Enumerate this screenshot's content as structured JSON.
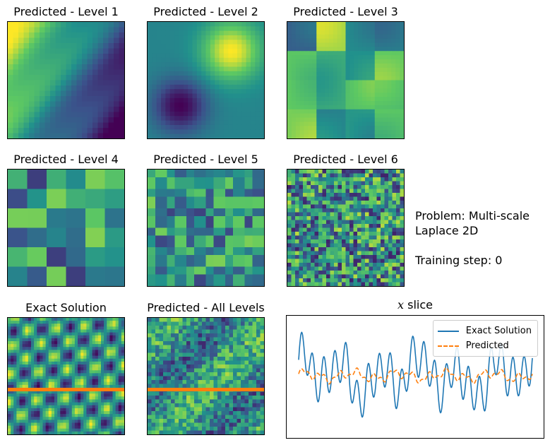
{
  "panels": [
    {
      "title": "Predicted - Level 1",
      "pattern": "gradient"
    },
    {
      "title": "Predicted - Level 2",
      "pattern": "blob"
    },
    {
      "title": "Predicted - Level 3",
      "pattern": "grid3"
    },
    {
      "title": "Predicted - Level 4",
      "pattern": "grid6"
    },
    {
      "title": "Predicted - Level 5",
      "pattern": "grid12"
    },
    {
      "title": "Predicted - Level 6",
      "pattern": "noise"
    },
    {
      "title": "Exact Solution",
      "pattern": "exact"
    },
    {
      "title": "Predicted - All Levels",
      "pattern": "all"
    }
  ],
  "info": {
    "problem_line1": "Problem: Multi-scale",
    "problem_line2": "Laplace 2D",
    "training_step": "Training step: 0"
  },
  "colors": {
    "viridis": [
      "#440154",
      "#3b528b",
      "#21918c",
      "#5ec962",
      "#fde725"
    ],
    "exact": "#1f77b4",
    "predicted": "#ff7f0e",
    "slice_marker": "#ff7f0e"
  },
  "chart_data": {
    "type": "line",
    "title_prefix": "x",
    "title_suffix": " slice",
    "legend_position": "top-right",
    "grid": false,
    "series": [
      {
        "name": "Exact Solution",
        "style": "solid"
      },
      {
        "name": "Predicted",
        "style": "dashed"
      }
    ]
  }
}
